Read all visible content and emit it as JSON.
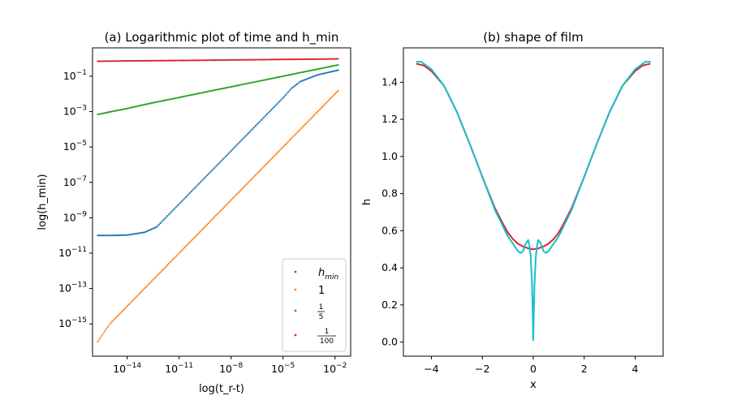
{
  "chart_data": [
    {
      "type": "scatter",
      "title": "(a) Logarithmic plot of time and h_min",
      "xlabel": "log(t_r-t)",
      "ylabel": "log(h_min)",
      "xscale": "log",
      "yscale": "log",
      "xlim": [
        1e-16,
        0.08
      ],
      "ylim": [
        1.5e-17,
        4
      ],
      "xticks": [
        {
          "value": 1e-14,
          "mant": "10",
          "exp": "−14"
        },
        {
          "value": 1e-11,
          "mant": "10",
          "exp": "−11"
        },
        {
          "value": 1e-08,
          "mant": "10",
          "exp": "−8"
        },
        {
          "value": 1e-05,
          "mant": "10",
          "exp": "−5"
        },
        {
          "value": 0.01,
          "mant": "10",
          "exp": "−2"
        }
      ],
      "yticks": [
        {
          "value": 1e-15,
          "mant": "10",
          "exp": "−15"
        },
        {
          "value": 1e-13,
          "mant": "10",
          "exp": "−13"
        },
        {
          "value": 1e-11,
          "mant": "10",
          "exp": "−11"
        },
        {
          "value": 1e-09,
          "mant": "10",
          "exp": "−9"
        },
        {
          "value": 1e-07,
          "mant": "10",
          "exp": "−7"
        },
        {
          "value": 1e-05,
          "mant": "10",
          "exp": "−5"
        },
        {
          "value": 0.001,
          "mant": "10",
          "exp": "−3"
        },
        {
          "value": 0.1,
          "mant": "10",
          "exp": "−1"
        }
      ],
      "legend_placement": "lower-right",
      "series": [
        {
          "name": "h_min",
          "legend": {
            "base": "h",
            "sub": "min"
          },
          "color": "#1f77b4",
          "x": [
            2e-16,
            1e-15,
            1e-14,
            1e-13,
            5e-13,
            1e-12,
            1e-11,
            1e-10,
            1e-09,
            1e-08,
            1e-07,
            1e-06,
            1e-05,
            3e-05,
            0.0001,
            0.001,
            0.01,
            0.015
          ],
          "y": [
            1e-10,
            1e-10,
            1.05e-10,
            1.5e-10,
            3e-10,
            6e-10,
            6e-09,
            6e-08,
            6e-07,
            6e-06,
            6e-05,
            0.0006,
            0.006,
            0.02,
            0.05,
            0.12,
            0.2,
            0.22
          ]
        },
        {
          "name": "1",
          "legend": {
            "text": "1"
          },
          "color": "#ff7f0e",
          "x": [
            2e-16,
            1e-15,
            1e-14,
            1e-13,
            1e-12,
            1e-11,
            1e-10,
            1e-09,
            1e-08,
            1e-07,
            1e-06,
            1e-05,
            0.0001,
            0.001,
            0.01,
            0.015
          ],
          "y": [
            1e-16,
            1e-15,
            1e-14,
            1e-13,
            1e-12,
            1e-11,
            1e-10,
            1e-09,
            1e-08,
            1e-07,
            1e-06,
            1e-05,
            0.0001,
            0.001,
            0.01,
            0.015
          ]
        },
        {
          "name": "1/5",
          "legend": {
            "num": "1",
            "den": "5"
          },
          "color": "#2ca02c",
          "x": [
            2e-16,
            1e-15,
            1e-14,
            1e-13,
            1e-12,
            1e-11,
            1e-10,
            1e-09,
            1e-08,
            1e-07,
            1e-06,
            1e-05,
            0.0001,
            0.001,
            0.01,
            0.015
          ],
          "y": [
            0.00069,
            0.00096,
            0.0015,
            0.0025,
            0.004,
            0.0063,
            0.01,
            0.016,
            0.025,
            0.04,
            0.063,
            0.1,
            0.16,
            0.25,
            0.4,
            0.43
          ]
        },
        {
          "name": "1/100",
          "legend": {
            "num": "1",
            "den": "100"
          },
          "color": "#d62728",
          "x": [
            2e-16,
            1e-14,
            1e-12,
            1e-10,
            1e-08,
            1e-06,
            0.0001,
            0.01,
            0.015
          ],
          "y": [
            0.7,
            0.73,
            0.76,
            0.79,
            0.83,
            0.87,
            0.91,
            0.95,
            0.96
          ]
        }
      ]
    },
    {
      "type": "line",
      "title": "(b) shape of film",
      "xlabel": "x",
      "ylabel": "h",
      "xlim": [
        -5.1,
        5.1
      ],
      "ylim": [
        -0.076,
        1.585
      ],
      "xticks": [
        {
          "value": -4,
          "label": "−4"
        },
        {
          "value": -2,
          "label": "−2"
        },
        {
          "value": 0,
          "label": "0"
        },
        {
          "value": 2,
          "label": "2"
        },
        {
          "value": 4,
          "label": "4"
        }
      ],
      "yticks": [
        {
          "value": 0.0,
          "label": "0.0"
        },
        {
          "value": 0.2,
          "label": "0.2"
        },
        {
          "value": 0.4,
          "label": "0.4"
        },
        {
          "value": 0.6,
          "label": "0.6"
        },
        {
          "value": 0.8,
          "label": "0.8"
        },
        {
          "value": 1.0,
          "label": "1.0"
        },
        {
          "value": 1.2,
          "label": "1.2"
        },
        {
          "value": 1.4,
          "label": "1.4"
        }
      ],
      "series": [
        {
          "color": "#d62728",
          "x": [
            -4.6,
            -4.3,
            -4.0,
            -3.5,
            -3.0,
            -2.5,
            -2.0,
            -1.5,
            -1.2,
            -1.0,
            -0.8,
            -0.6,
            -0.4,
            -0.2,
            0.0,
            0.2,
            0.4,
            0.6,
            0.8,
            1.0,
            1.2,
            1.5,
            2.0,
            2.5,
            3.0,
            3.5,
            4.0,
            4.3,
            4.6
          ],
          "y": [
            1.5,
            1.49,
            1.46,
            1.38,
            1.24,
            1.07,
            0.89,
            0.72,
            0.64,
            0.59,
            0.555,
            0.53,
            0.515,
            0.505,
            0.5,
            0.505,
            0.515,
            0.53,
            0.555,
            0.59,
            0.64,
            0.72,
            0.89,
            1.07,
            1.24,
            1.38,
            1.46,
            1.49,
            1.5
          ]
        },
        {
          "color": "#17becf",
          "x": [
            -4.6,
            -4.4,
            -4.0,
            -3.5,
            -3.0,
            -2.5,
            -2.0,
            -1.5,
            -1.0,
            -0.8,
            -0.6,
            -0.5,
            -0.4,
            -0.3,
            -0.2,
            -0.15,
            -0.1,
            -0.05,
            -0.02,
            0.0,
            0.02,
            0.05,
            0.1,
            0.15,
            0.2,
            0.3,
            0.4,
            0.5,
            0.6,
            0.8,
            1.0,
            1.5,
            2.0,
            2.5,
            3.0,
            3.5,
            4.0,
            4.4,
            4.6
          ],
          "y": [
            1.51,
            1.51,
            1.47,
            1.38,
            1.24,
            1.07,
            0.89,
            0.71,
            0.57,
            0.53,
            0.49,
            0.48,
            0.49,
            0.53,
            0.55,
            0.52,
            0.46,
            0.32,
            0.15,
            0.01,
            0.15,
            0.32,
            0.46,
            0.52,
            0.55,
            0.53,
            0.49,
            0.48,
            0.49,
            0.53,
            0.57,
            0.71,
            0.89,
            1.07,
            1.24,
            1.38,
            1.47,
            1.51,
            1.51
          ]
        }
      ]
    }
  ]
}
